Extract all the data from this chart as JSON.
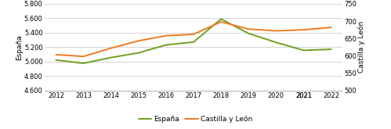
{
  "years": [
    2012,
    2013,
    2014,
    2015,
    2016,
    2017,
    2018,
    2019,
    2020,
    2021,
    2021,
    2022
  ],
  "espana": [
    5020,
    4975,
    5055,
    5120,
    5230,
    5270,
    5590,
    5390,
    5265,
    5155,
    5155,
    5170
  ],
  "castilla": [
    603,
    598,
    622,
    643,
    658,
    662,
    698,
    677,
    672,
    675,
    675,
    682
  ],
  "espana_color": "#70a020",
  "castilla_color": "#f07820",
  "ylim_left": [
    4600,
    5800
  ],
  "ylim_right": [
    500,
    750
  ],
  "yticks_left": [
    4600,
    4800,
    5000,
    5200,
    5400,
    5600,
    5800
  ],
  "yticks_right": [
    500,
    550,
    600,
    650,
    700,
    750
  ],
  "ylabel_left": "España",
  "ylabel_right": "Castilla y León",
  "legend_espana": "España",
  "legend_castilla": "Castilla y León",
  "background_color": "#ffffff",
  "grid_color": "#cccccc",
  "tick_fontsize": 6.0,
  "ylabel_fontsize": 6.5,
  "legend_fontsize": 6.5,
  "linewidth": 1.4
}
